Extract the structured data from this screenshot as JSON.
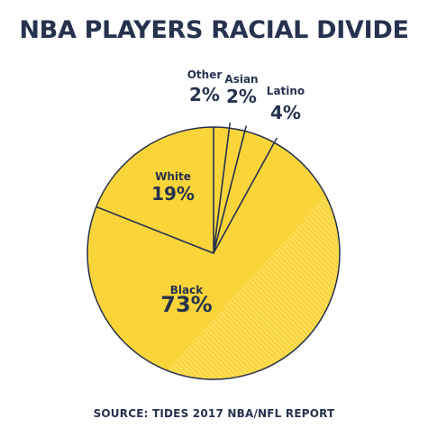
{
  "title": "NBA PLAYERS RACIAL DIVIDE",
  "source": "SOURCE: TIDES 2017 NBA/NFL REPORT",
  "colors": {
    "slice_fill": "#f9d53a",
    "slice_stroke": "#27324f",
    "hatch": "#ffffff",
    "text": "#27324f"
  },
  "chart_data": {
    "type": "pie",
    "title": "NBA PLAYERS RACIAL DIVIDE",
    "slices": [
      {
        "label": "Other",
        "value": 2,
        "display": "2%"
      },
      {
        "label": "Asian",
        "value": 2,
        "display": "2%"
      },
      {
        "label": "Latino",
        "value": 4,
        "display": "4%"
      },
      {
        "label": "Black",
        "value": 73,
        "display": "73%"
      },
      {
        "label": "White",
        "value": 19,
        "display": "19%"
      }
    ]
  }
}
